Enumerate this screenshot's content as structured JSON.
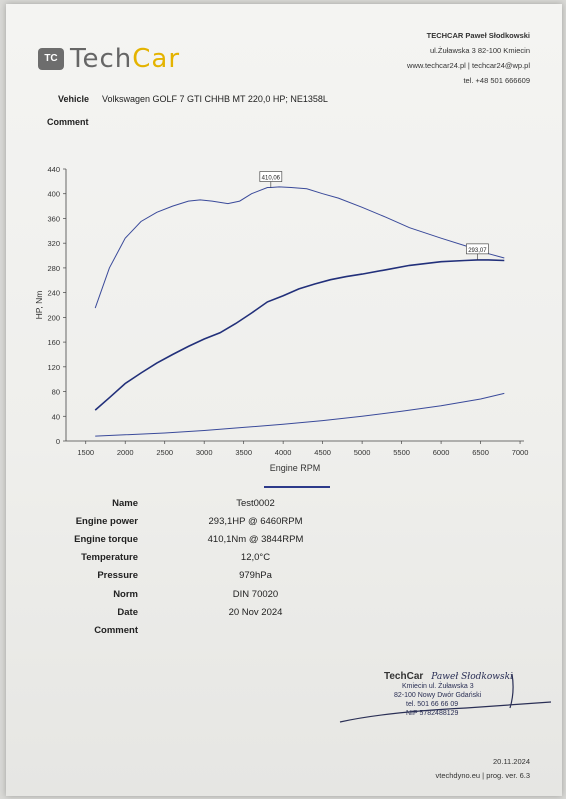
{
  "header": {
    "logo_text_a": "Tech",
    "logo_text_b": "Car",
    "logo_mark": "TC",
    "company_name": "TECHCAR Paweł Słodkowski",
    "address": "ul.Żuławska 3 82-100 Kmiecin",
    "web_email": "www.techcar24.pl | techcar24@wp.pl",
    "phone": "tel. +48 501 666609"
  },
  "vehicle": {
    "label": "Vehicle",
    "value": "Volkswagen GOLF 7 GTI CHHB MT 220,0 HP; NE1358L"
  },
  "comment_top": {
    "label": "Comment"
  },
  "chart_data": {
    "type": "line",
    "xlabel": "Engine RPM",
    "ylabel": "HP, Nm",
    "xlim": [
      1250,
      7050
    ],
    "ylim": [
      0,
      440
    ],
    "x_ticks": [
      1500,
      2000,
      2500,
      3000,
      3500,
      4000,
      4500,
      5000,
      5500,
      6000,
      6500,
      7000
    ],
    "y_ticks": [
      0,
      40,
      80,
      120,
      160,
      200,
      240,
      280,
      320,
      360,
      400,
      440
    ],
    "grid": false,
    "series": [
      {
        "color": "#3a4a9a",
        "x": [
          1620,
          1800,
          2000,
          2200,
          2400,
          2600,
          2800,
          2950,
          3100,
          3300,
          3450,
          3600,
          3800,
          3844,
          3950,
          4100,
          4300,
          4500,
          4700,
          5000,
          5300,
          5600,
          6000,
          6400,
          6600,
          6800
        ],
        "y": [
          215,
          280,
          328,
          355,
          370,
          380,
          388,
          390,
          388,
          384,
          388,
          400,
          410,
          410,
          411,
          410,
          408,
          400,
          393,
          378,
          362,
          345,
          328,
          312,
          303,
          296
        ]
      },
      {
        "color": "#22307a",
        "x": [
          1620,
          1800,
          2000,
          2200,
          2400,
          2600,
          2800,
          3000,
          3200,
          3400,
          3600,
          3800,
          4000,
          4200,
          4400,
          4600,
          4800,
          5000,
          5300,
          5600,
          6000,
          6300,
          6460,
          6600,
          6800
        ],
        "y": [
          50,
          70,
          93,
          110,
          126,
          140,
          153,
          165,
          175,
          190,
          207,
          225,
          235,
          246,
          254,
          261,
          266,
          270,
          277,
          284,
          290,
          292,
          293,
          293,
          292
        ]
      },
      {
        "color": "#3a4a9a",
        "x": [
          1620,
          2000,
          2500,
          3000,
          3500,
          4000,
          4500,
          5000,
          5500,
          6000,
          6500,
          6800
        ],
        "y": [
          8,
          10,
          13,
          17,
          22,
          27,
          33,
          40,
          48,
          57,
          68,
          77
        ]
      }
    ],
    "annotations": [
      {
        "text": "410,06",
        "x": 3844,
        "y": 410
      },
      {
        "text": "293,07",
        "x": 6460,
        "y": 293
      }
    ]
  },
  "results": [
    {
      "label": "Name",
      "value": "Test0002"
    },
    {
      "label": "Engine power",
      "value": "293,1HP @ 6460RPM"
    },
    {
      "label": "Engine torque",
      "value": "410,1Nm @ 3844RPM"
    },
    {
      "label": "Temperature",
      "value": "12,0°C"
    },
    {
      "label": "Pressure",
      "value": "979hPa"
    },
    {
      "label": "Norm",
      "value": "DIN 70020"
    },
    {
      "label": "Date",
      "value": "20 Nov 2024"
    },
    {
      "label": "Comment",
      "value": ""
    }
  ],
  "stamp": {
    "brand": "TechCar",
    "signature": "Paweł Słodkowski",
    "line1": "Kmiecin ul. Żuławska 3",
    "line2": "82-100 Nowy Dwór Gdański",
    "line3": "tel. 501 66 66 09",
    "line4": "NIP 5782488129"
  },
  "footer": {
    "date": "20.11.2024",
    "program": "vtechdyno.eu | prog. ver. 6.3"
  }
}
